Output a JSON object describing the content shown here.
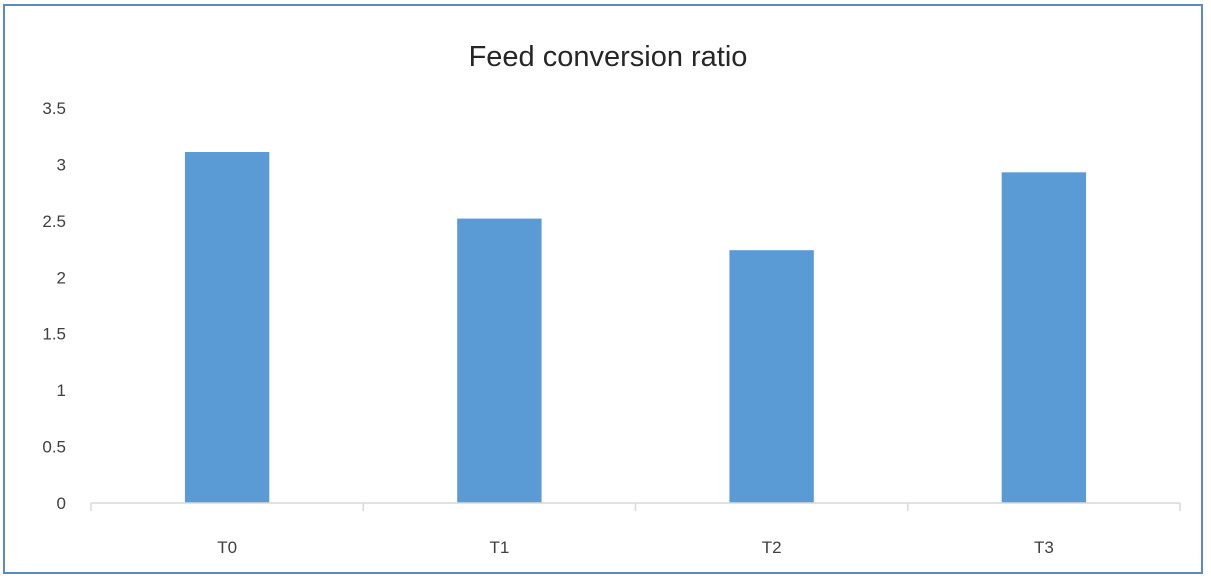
{
  "chart_data": {
    "type": "bar",
    "title": "Feed conversion ratio",
    "categories": [
      "T0",
      "T1",
      "T2",
      "T3"
    ],
    "values": [
      3.11,
      2.52,
      2.24,
      2.93
    ],
    "ylim": [
      0,
      3.5
    ],
    "yticks": [
      "0",
      "0.5",
      "1",
      "1.5",
      "2",
      "2.5",
      "3",
      "3.5"
    ],
    "xlabel": "",
    "ylabel": "",
    "grid": false,
    "legend": "none",
    "colors": {
      "bar": "#5b9bd5",
      "frame": "#5b8bc4",
      "axis": "#d9d9d9"
    }
  }
}
